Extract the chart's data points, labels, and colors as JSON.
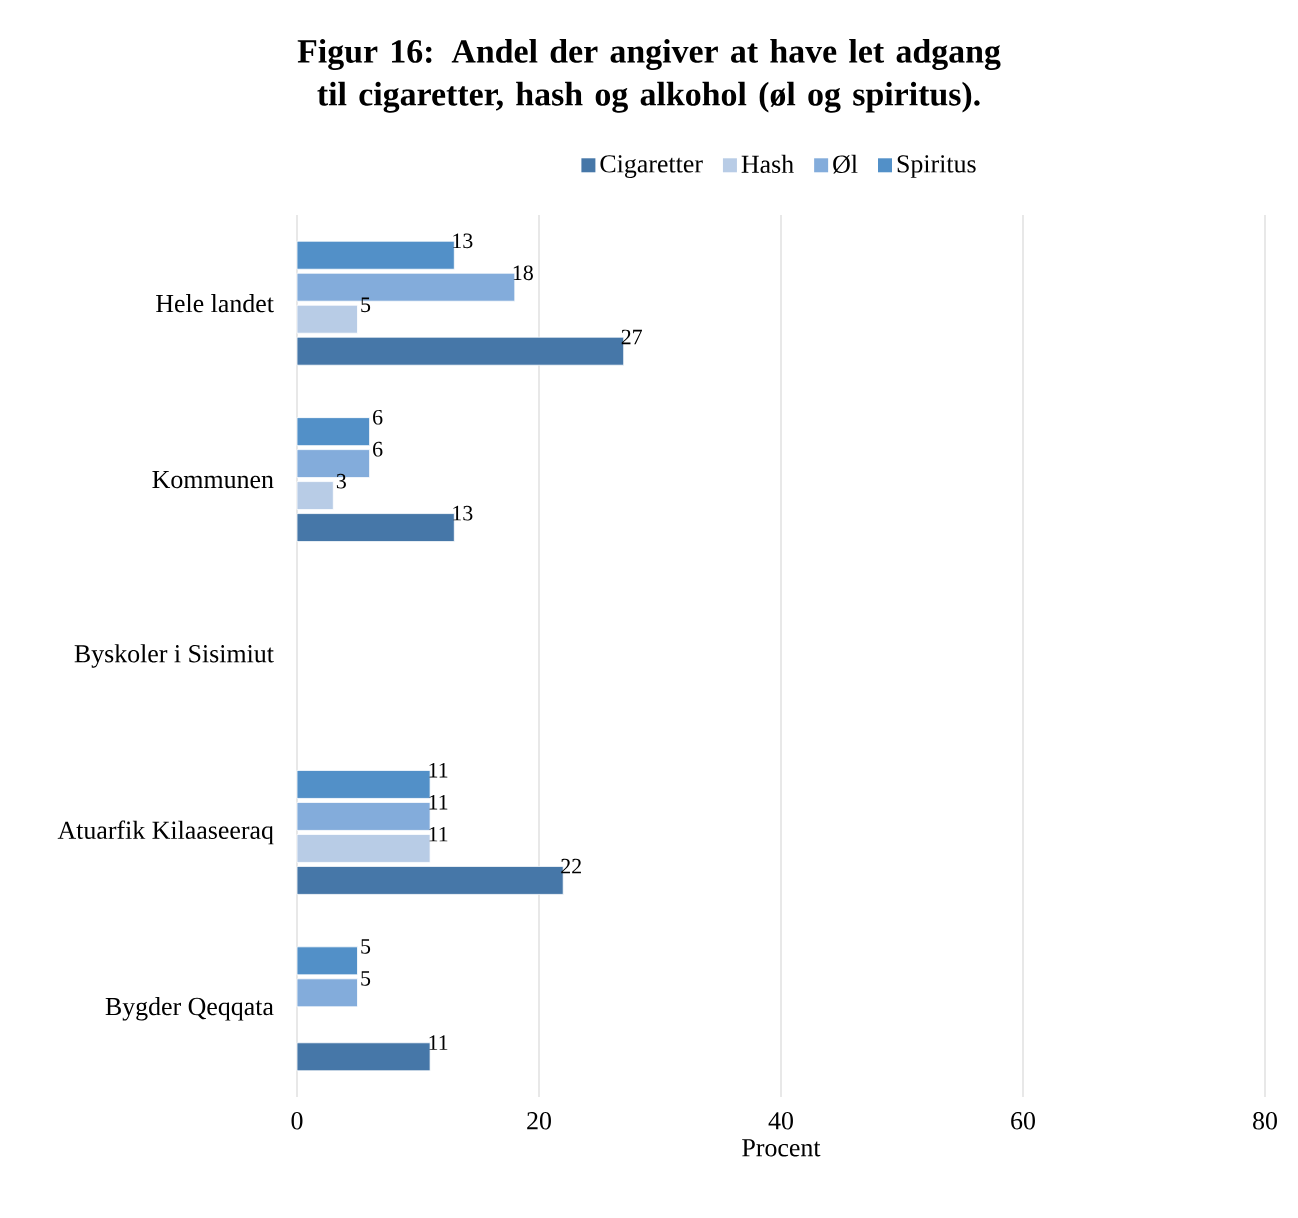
{
  "chart_data": {
    "type": "bar",
    "orientation": "horizontal",
    "title": "Figur 16: Andel der angiver at have let adgang til cigaretter, hash og alkohol (øl og spiritus).",
    "xlabel": "Procent",
    "categories": [
      "Hele landet",
      "Kommunen",
      "Byskoler i Sisimiut",
      "Atuarfik Kilaaseeraq",
      "Bygder Qeqqata"
    ],
    "series": [
      {
        "name": "Cigaretter",
        "color": "#4677a8",
        "values": [
          27,
          13,
          null,
          22,
          11
        ]
      },
      {
        "name": "Hash",
        "color": "#b8cce6",
        "values": [
          5,
          3,
          null,
          11,
          null
        ]
      },
      {
        "name": "Øl",
        "color": "#83acdb",
        "values": [
          18,
          6,
          null,
          11,
          5
        ]
      },
      {
        "name": "Spiritus",
        "color": "#5290c8",
        "values": [
          13,
          6,
          null,
          11,
          5
        ]
      }
    ],
    "xlim": [
      0,
      80
    ],
    "xticks": [
      0,
      20,
      40,
      60,
      80
    ],
    "grid": "x",
    "legend": "top",
    "data_labels": true
  }
}
